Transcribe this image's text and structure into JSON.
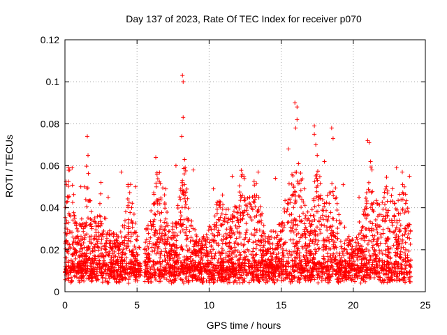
{
  "chart_data": {
    "type": "scatter",
    "title": "Day 137 of 2023, Rate Of TEC Index for receiver p070",
    "xlabel": "GPS time / hours",
    "ylabel": "ROTI / TECUs",
    "xlim": [
      0,
      25
    ],
    "ylim": [
      0,
      0.12
    ],
    "xticks": [
      0,
      5,
      10,
      15,
      20,
      25
    ],
    "xtick_labels": [
      "0",
      "5",
      "10",
      "15",
      "20",
      "25"
    ],
    "yticks": [
      0,
      0.02,
      0.04,
      0.06,
      0.08,
      0.1,
      0.12
    ],
    "ytick_labels": [
      "0",
      "0.02",
      "0.04",
      "0.06",
      "0.08",
      "0.1",
      "0.12"
    ],
    "grid": true,
    "marker": "+",
    "color": "#ff0000",
    "data_gap_hours": [
      5.25,
      5.5
    ],
    "peaks": [
      {
        "x": 0.1,
        "y": 0.051
      },
      {
        "x": 0.5,
        "y": 0.059
      },
      {
        "x": 1.1,
        "y": 0.05
      },
      {
        "x": 1.55,
        "y": 0.074
      },
      {
        "x": 1.6,
        "y": 0.065
      },
      {
        "x": 2.5,
        "y": 0.052
      },
      {
        "x": 3.0,
        "y": 0.045
      },
      {
        "x": 3.9,
        "y": 0.057
      },
      {
        "x": 4.9,
        "y": 0.05
      },
      {
        "x": 6.3,
        "y": 0.064
      },
      {
        "x": 7.0,
        "y": 0.049
      },
      {
        "x": 7.7,
        "y": 0.06
      },
      {
        "x": 8.15,
        "y": 0.103
      },
      {
        "x": 8.2,
        "y": 0.1
      },
      {
        "x": 8.2,
        "y": 0.083
      },
      {
        "x": 8.1,
        "y": 0.074
      },
      {
        "x": 8.3,
        "y": 0.063
      },
      {
        "x": 8.9,
        "y": 0.058
      },
      {
        "x": 10.3,
        "y": 0.049
      },
      {
        "x": 11.6,
        "y": 0.055
      },
      {
        "x": 12.3,
        "y": 0.056
      },
      {
        "x": 13.4,
        "y": 0.057
      },
      {
        "x": 14.6,
        "y": 0.054
      },
      {
        "x": 15.5,
        "y": 0.068
      },
      {
        "x": 15.95,
        "y": 0.09
      },
      {
        "x": 16.1,
        "y": 0.088
      },
      {
        "x": 16.1,
        "y": 0.082
      },
      {
        "x": 16.0,
        "y": 0.078
      },
      {
        "x": 16.2,
        "y": 0.061
      },
      {
        "x": 16.6,
        "y": 0.049
      },
      {
        "x": 17.3,
        "y": 0.079
      },
      {
        "x": 17.3,
        "y": 0.075
      },
      {
        "x": 17.4,
        "y": 0.07
      },
      {
        "x": 17.5,
        "y": 0.065
      },
      {
        "x": 18.0,
        "y": 0.062
      },
      {
        "x": 18.5,
        "y": 0.078
      },
      {
        "x": 18.6,
        "y": 0.073
      },
      {
        "x": 19.3,
        "y": 0.051
      },
      {
        "x": 20.4,
        "y": 0.045
      },
      {
        "x": 21.0,
        "y": 0.072
      },
      {
        "x": 21.1,
        "y": 0.071
      },
      {
        "x": 21.2,
        "y": 0.062
      },
      {
        "x": 21.3,
        "y": 0.058
      },
      {
        "x": 22.3,
        "y": 0.05
      },
      {
        "x": 23.0,
        "y": 0.059
      },
      {
        "x": 23.4,
        "y": 0.057
      },
      {
        "x": 23.9,
        "y": 0.055
      }
    ]
  }
}
